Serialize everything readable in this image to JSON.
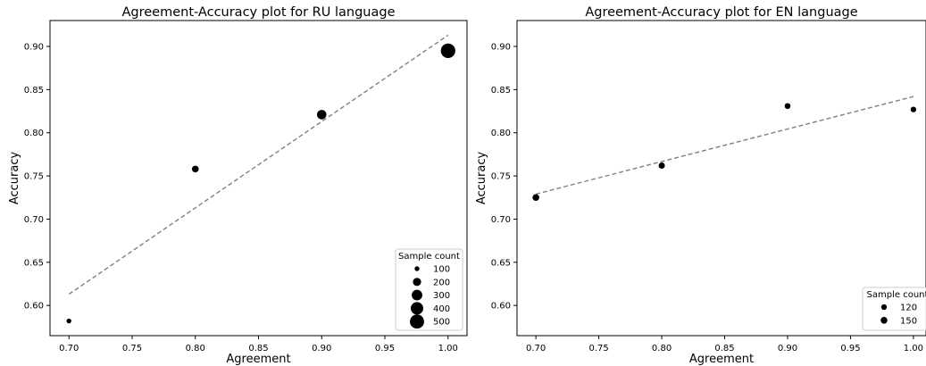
{
  "chart_data": [
    {
      "type": "scatter",
      "title": "Agreement-Accuracy plot for RU language",
      "xlabel": "Agreement",
      "ylabel": "Accuracy",
      "xlim": [
        0.685,
        1.015
      ],
      "ylim": [
        0.565,
        0.93
      ],
      "xticks": [
        "0.70",
        "0.75",
        "0.80",
        "0.85",
        "0.90",
        "0.95",
        "1.00"
      ],
      "yticks": [
        "0.60",
        "0.65",
        "0.70",
        "0.75",
        "0.80",
        "0.85",
        "0.90"
      ],
      "points": [
        {
          "x": 0.7,
          "y": 0.582,
          "count": 100
        },
        {
          "x": 0.8,
          "y": 0.758,
          "count": 150
        },
        {
          "x": 0.9,
          "y": 0.821,
          "count": 250
        },
        {
          "x": 1.0,
          "y": 0.895,
          "count": 520
        }
      ],
      "trendline": {
        "x": [
          0.7,
          1.0
        ],
        "y": [
          0.613,
          0.913
        ],
        "color": "#808080",
        "style": "dashed"
      },
      "legend": {
        "title": "Sample count",
        "placement": "lower-right",
        "entries": [
          {
            "label": "100",
            "value": 100
          },
          {
            "label": "200",
            "value": 200
          },
          {
            "label": "300",
            "value": 300
          },
          {
            "label": "400",
            "value": 400
          },
          {
            "label": "500",
            "value": 500
          }
        ]
      },
      "size_range": [
        100,
        520
      ],
      "grid": false
    },
    {
      "type": "scatter",
      "title": "Agreement-Accuracy plot for EN language",
      "xlabel": "Agreement",
      "ylabel": "Accuracy",
      "xlim": [
        0.685,
        1.01
      ],
      "ylim": [
        0.565,
        0.93
      ],
      "xticks": [
        "0.70",
        "0.75",
        "0.80",
        "0.85",
        "0.90",
        "0.95",
        "1.00"
      ],
      "yticks": [
        "0.60",
        "0.65",
        "0.70",
        "0.75",
        "0.80",
        "0.85",
        "0.90"
      ],
      "points": [
        {
          "x": 0.7,
          "y": 0.725,
          "count": 150
        },
        {
          "x": 0.8,
          "y": 0.762,
          "count": 135
        },
        {
          "x": 0.9,
          "y": 0.831,
          "count": 125
        },
        {
          "x": 1.0,
          "y": 0.827,
          "count": 120
        }
      ],
      "trendline": {
        "x": [
          0.7,
          1.0
        ],
        "y": [
          0.729,
          0.842
        ],
        "color": "#808080",
        "style": "dashed"
      },
      "legend": {
        "title": "Sample count",
        "placement": "lower-right",
        "entries": [
          {
            "label": "120",
            "value": 120
          },
          {
            "label": "150",
            "value": 150
          }
        ]
      },
      "size_range": [
        100,
        520
      ],
      "grid": false
    }
  ]
}
